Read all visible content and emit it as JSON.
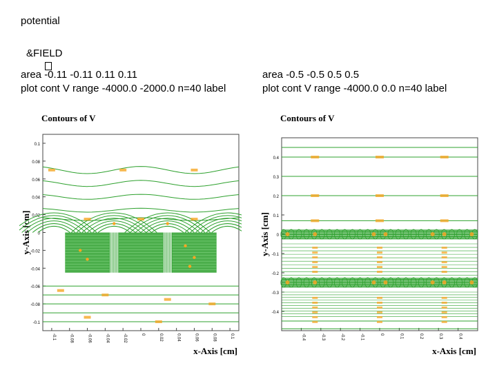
{
  "slide": {
    "title": "potential",
    "field_label": "&FIELD",
    "left_area": "area -0.11 -0.11 0.11 0.11",
    "left_cmd": "plot cont V range -4000.0 -2000.0 n=40 label",
    "right_area": "area -0.5 -0.5 0.5 0.5",
    "right_cmd": "plot cont V range -4000.0 0.0 n=40 label"
  },
  "chart_data": [
    {
      "type": "line",
      "title": "Contours of V",
      "xlabel": "x-Axis [cm]",
      "ylabel": "y-Axis [cm]",
      "xlim": [
        -0.11,
        0.11
      ],
      "ylim": [
        -0.11,
        0.11
      ],
      "x_ticks": [
        "-0.1",
        "-0.08",
        "-0.06",
        "-0.04",
        "-0.02",
        "0",
        "0.02",
        "0.04",
        "0.06",
        "0.08",
        "0.1"
      ],
      "y_ticks": [
        "0.1",
        "0.08",
        "0.06",
        "0.04",
        "0.02",
        "0",
        "-0.02",
        "-0.04",
        "-0.06",
        "-0.08",
        "-0.1"
      ],
      "range": [
        -4000.0,
        -2000.0
      ],
      "contour_levels": 40,
      "electrodes": [
        {
          "x": [
            -0.085,
            -0.035
          ],
          "y": [
            -0.045,
            0
          ]
        },
        {
          "x": [
            -0.025,
            0.025
          ],
          "y": [
            -0.045,
            0
          ]
        },
        {
          "x": [
            0.035,
            0.085
          ],
          "y": [
            -0.045,
            0
          ]
        }
      ],
      "line_color": "#2ca02c",
      "label_color": "#f5a623"
    },
    {
      "type": "line",
      "title": "Contours of V",
      "xlabel": "x-Axis [cm]",
      "ylabel": "y-Axis [cm]",
      "xlim": [
        -0.5,
        0.5
      ],
      "ylim": [
        -0.5,
        0.5
      ],
      "x_ticks": [
        "-0.4",
        "-0.3",
        "-0.2",
        "-0.1",
        "0",
        "0.1",
        "0.2",
        "0.3",
        "0.4"
      ],
      "y_ticks": [
        "0.4",
        "0.3",
        "0.2",
        "0.1",
        "0",
        "-0.1",
        "-0.2",
        "-0.3",
        "-0.4"
      ],
      "range": [
        -4000.0,
        0.0
      ],
      "contour_levels": 40,
      "electrode_rows_y": [
        0,
        -0.25
      ],
      "line_color": "#2ca02c",
      "label_color": "#f5a623"
    }
  ]
}
